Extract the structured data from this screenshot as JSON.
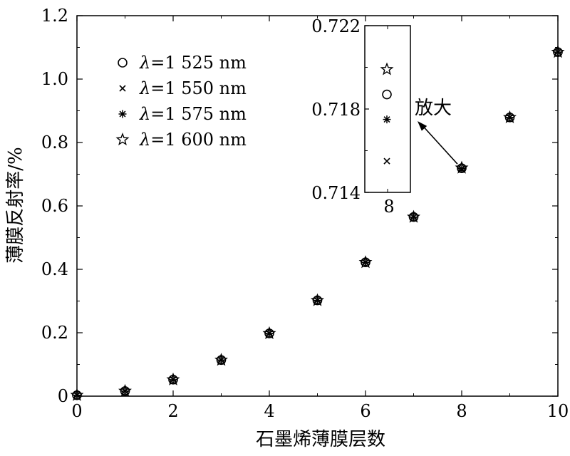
{
  "chart_data": {
    "type": "scatter",
    "xlabel": "石墨烯薄膜层数",
    "ylabel": "薄膜反射率/%",
    "xlim": [
      0,
      10
    ],
    "ylim": [
      0,
      1.2
    ],
    "x_ticks": [
      "0",
      "2",
      "4",
      "6",
      "8",
      "10"
    ],
    "y_ticks": [
      "0",
      "0.2",
      "0.4",
      "0.6",
      "0.8",
      "1.0",
      "1.2"
    ],
    "grid": false,
    "legend_position": "top-left",
    "x": [
      0,
      1,
      2,
      3,
      4,
      5,
      6,
      7,
      8,
      9,
      10
    ],
    "series": [
      {
        "name_prefix": "λ",
        "name_value": "=1 525 nm",
        "marker": "circle",
        "values": [
          0.003,
          0.016,
          0.052,
          0.114,
          0.198,
          0.302,
          0.422,
          0.565,
          0.7187,
          0.879,
          1.085
        ]
      },
      {
        "name_prefix": "λ",
        "name_value": "=1 550 nm",
        "marker": "x",
        "values": [
          0.003,
          0.016,
          0.052,
          0.114,
          0.198,
          0.302,
          0.422,
          0.565,
          0.7155,
          0.879,
          1.085
        ]
      },
      {
        "name_prefix": "λ",
        "name_value": "=1 575 nm",
        "marker": "asterisk",
        "values": [
          0.003,
          0.016,
          0.052,
          0.114,
          0.198,
          0.302,
          0.422,
          0.565,
          0.7175,
          0.879,
          1.085
        ]
      },
      {
        "name_prefix": "λ",
        "name_value": "=1 600 nm",
        "marker": "star",
        "values": [
          0.003,
          0.016,
          0.052,
          0.114,
          0.198,
          0.302,
          0.422,
          0.565,
          0.7199,
          0.879,
          1.085
        ]
      }
    ],
    "inset": {
      "x_tick": "8",
      "y_ticks": [
        "0.714",
        "0.718",
        "0.722"
      ],
      "ylim": [
        0.714,
        0.722
      ],
      "x": 8
    },
    "annotation": "放大"
  }
}
